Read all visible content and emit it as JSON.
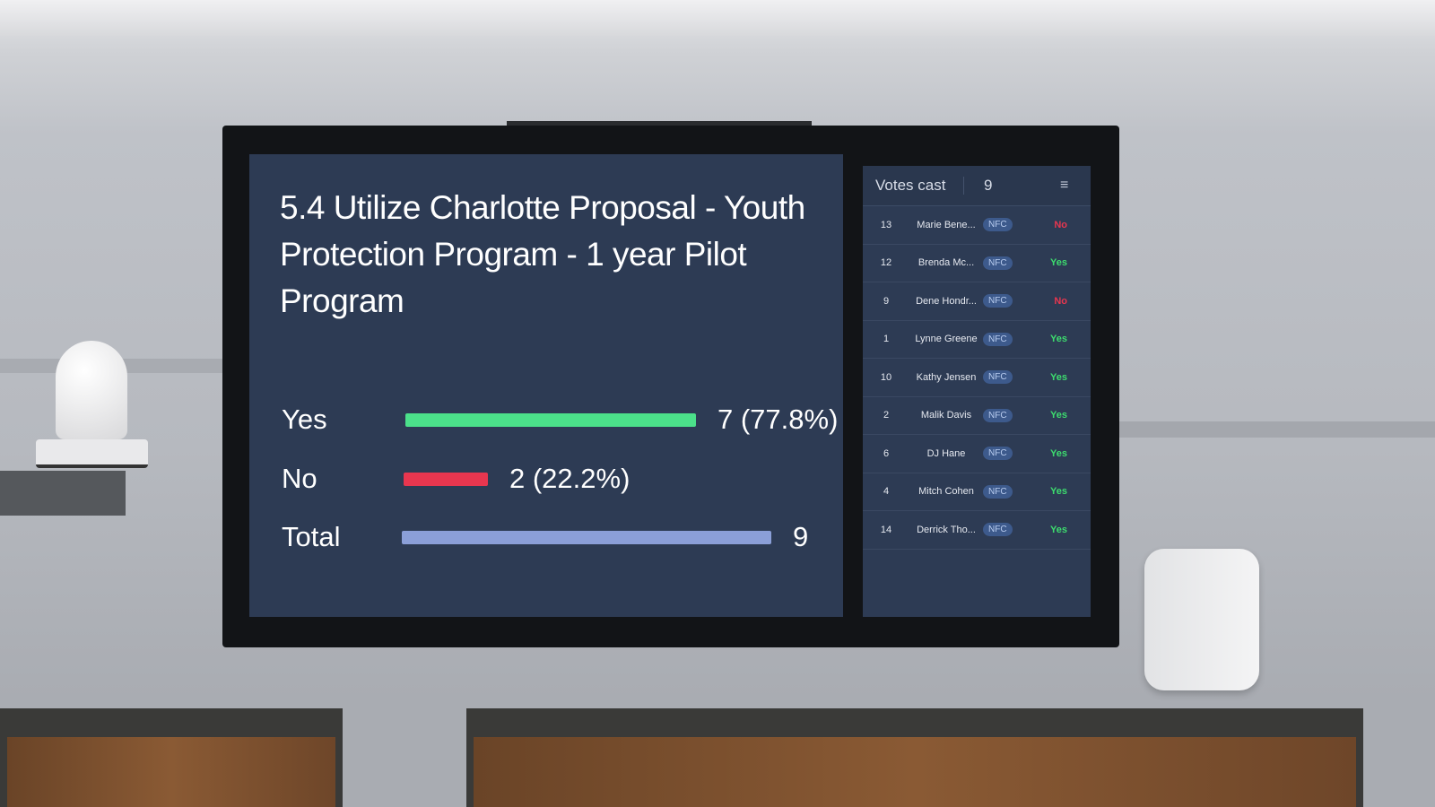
{
  "motion": {
    "title": "5.4 Utilize Charlotte Proposal - Youth Protection Program - 1 year Pilot Program"
  },
  "results": [
    {
      "label": "Yes",
      "count": 7,
      "display": "7 (77.8%)",
      "fraction": 0.778,
      "color": "#4be08a"
    },
    {
      "label": "No",
      "count": 2,
      "display": "2 (22.2%)",
      "fraction": 0.222,
      "color": "#e8364f"
    },
    {
      "label": "Total",
      "count": 9,
      "display": "9",
      "fraction": 1.0,
      "color": "#8b9fd8"
    }
  ],
  "votes_panel": {
    "header_label": "Votes cast",
    "header_count": "9",
    "sort_icon": "sort-icon",
    "rows": [
      {
        "seat": "13",
        "name": "Marie Bene...",
        "method": "NFC",
        "vote": "No"
      },
      {
        "seat": "12",
        "name": "Brenda Mc...",
        "method": "NFC",
        "vote": "Yes"
      },
      {
        "seat": "9",
        "name": "Dene Hondr...",
        "method": "NFC",
        "vote": "No"
      },
      {
        "seat": "1",
        "name": "Lynne Greene",
        "method": "NFC",
        "vote": "Yes"
      },
      {
        "seat": "10",
        "name": "Kathy Jensen",
        "method": "NFC",
        "vote": "Yes"
      },
      {
        "seat": "2",
        "name": "Malik Davis",
        "method": "NFC",
        "vote": "Yes"
      },
      {
        "seat": "6",
        "name": "DJ Hane",
        "method": "NFC",
        "vote": "Yes"
      },
      {
        "seat": "4",
        "name": "Mitch Cohen",
        "method": "NFC",
        "vote": "Yes"
      },
      {
        "seat": "14",
        "name": "Derrick Tho...",
        "method": "NFC",
        "vote": "Yes"
      }
    ],
    "colors": {
      "yes": "#3ddc6e",
      "no": "#e8364f"
    }
  }
}
